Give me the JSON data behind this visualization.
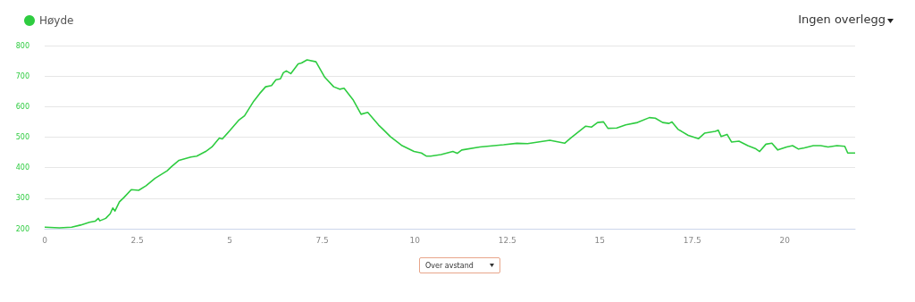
{
  "chart_data": {
    "type": "line",
    "x": [
      0,
      0.4,
      0.73,
      0.97,
      1.21,
      1.37,
      1.45,
      1.49,
      1.65,
      1.77,
      1.84,
      1.9,
      2.02,
      2.14,
      2.34,
      2.54,
      2.74,
      2.98,
      3.31,
      3.43,
      3.63,
      3.95,
      4.11,
      4.35,
      4.52,
      4.72,
      4.8,
      5.0,
      5.24,
      5.4,
      5.65,
      5.81,
      5.97,
      6.13,
      6.25,
      6.37,
      6.45,
      6.53,
      6.65,
      6.85,
      6.94,
      7.09,
      7.33,
      7.57,
      7.81,
      7.97,
      8.09,
      8.33,
      8.55,
      8.73,
      9.02,
      9.14,
      9.34,
      9.66,
      9.98,
      10.18,
      10.31,
      10.43,
      10.71,
      11.03,
      11.15,
      11.27,
      11.76,
      12.4,
      12.76,
      13.05,
      13.65,
      14.05,
      14.21,
      14.62,
      14.78,
      14.94,
      15.1,
      15.22,
      15.46,
      15.7,
      16.02,
      16.34,
      16.5,
      16.7,
      16.87,
      16.95,
      17.11,
      17.39,
      17.67,
      17.83,
      18.12,
      18.2,
      18.28,
      18.44,
      18.56,
      18.76,
      19.0,
      19.2,
      19.32,
      19.49,
      19.65,
      19.81,
      20.05,
      20.21,
      20.37,
      20.53,
      20.77,
      20.97,
      21.17,
      21.41,
      21.62,
      21.7,
      21.9
    ],
    "series": [
      {
        "name": "Høyde",
        "color": "#2ecc40",
        "values": [
          205,
          203,
          205,
          212,
          221,
          225,
          234,
          226,
          234,
          249,
          268,
          258,
          288,
          302,
          328,
          326,
          341,
          365,
          390,
          404,
          424,
          435,
          438,
          453,
          468,
          497,
          494,
          521,
          555,
          570,
          618,
          643,
          665,
          669,
          688,
          691,
          711,
          717,
          708,
          740,
          743,
          753,
          747,
          696,
          665,
          657,
          660,
          623,
          575,
          581,
          540,
          526,
          502,
          472,
          453,
          448,
          438,
          438,
          443,
          453,
          447,
          458,
          468,
          475,
          480,
          479,
          490,
          480,
          497,
          536,
          533,
          548,
          550,
          529,
          530,
          540,
          548,
          564,
          562,
          548,
          545,
          550,
          526,
          506,
          495,
          513,
          519,
          523,
          502,
          509,
          484,
          487,
          472,
          463,
          453,
          477,
          480,
          458,
          468,
          472,
          461,
          465,
          472,
          472,
          468,
          472,
          470,
          448,
          448
        ]
      }
    ],
    "xlim": [
      0,
      21.9
    ],
    "xticks": [
      0,
      2.5,
      5,
      7.5,
      10,
      12.5,
      15,
      17.5,
      20
    ],
    "ylim": [
      200,
      800
    ],
    "yticks": [
      200,
      300,
      400,
      500,
      600,
      700,
      800
    ],
    "grid": "y",
    "legend": "top left",
    "annotations": [
      "Ingen overlegg",
      "Over avstand"
    ]
  }
}
